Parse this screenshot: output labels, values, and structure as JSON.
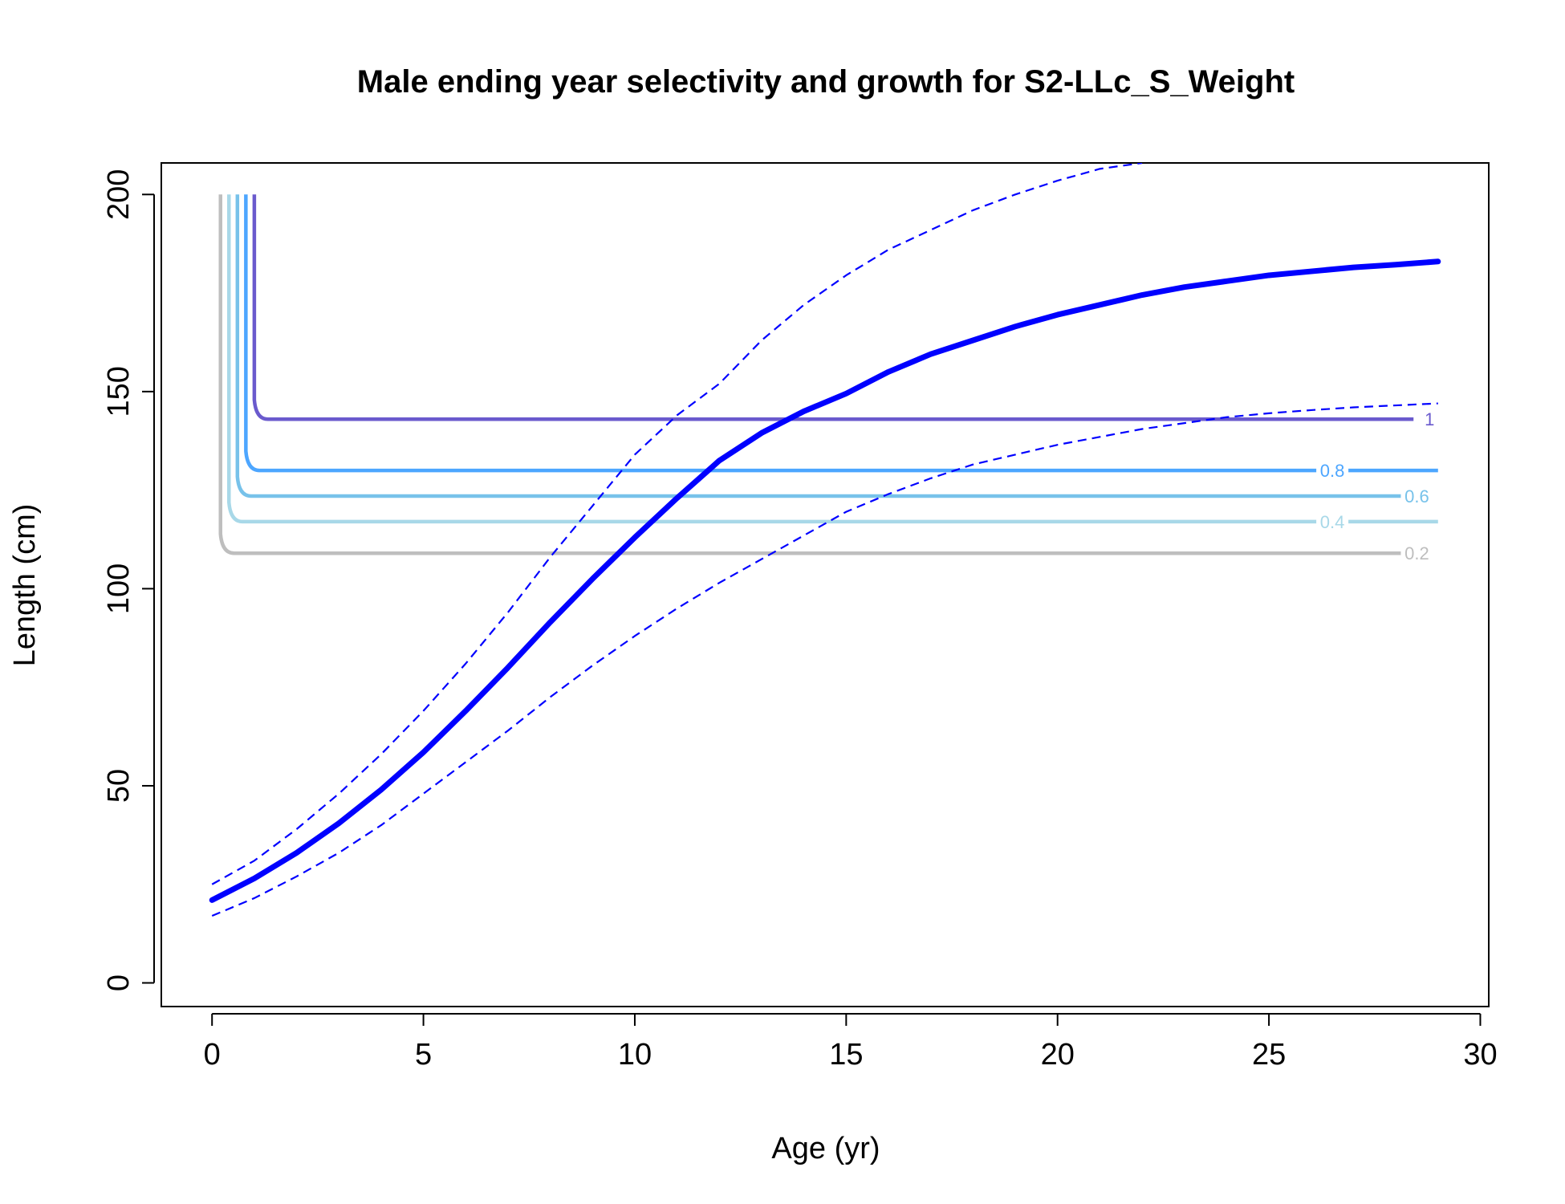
{
  "chart_data": {
    "type": "line",
    "title": "Male ending year selectivity and growth for S2-LLc_S_Weight",
    "xlabel": "Age (yr)",
    "ylabel": "Length (cm)",
    "xlim": [
      -1.2,
      30.2
    ],
    "ylim": [
      -6,
      208
    ],
    "xticks": [
      0,
      5,
      10,
      15,
      20,
      25,
      30
    ],
    "yticks": [
      0,
      50,
      100,
      150,
      200
    ],
    "grid": false,
    "legend": "none",
    "series": [
      {
        "role": "growth-mean",
        "style": "solid-thick",
        "color": "#0000ff",
        "x": [
          0,
          1,
          2,
          3,
          4,
          5,
          6,
          7,
          8,
          9,
          10,
          11,
          12,
          13,
          14,
          15,
          16,
          17,
          18,
          19,
          20,
          21,
          22,
          23,
          24,
          25,
          26,
          27,
          28,
          29
        ],
        "y": [
          21,
          26.5,
          33,
          40.5,
          49,
          58.5,
          69,
          80,
          91.5,
          102.5,
          113,
          123,
          132.5,
          139.5,
          145,
          149.5,
          155,
          159.5,
          163,
          166.5,
          169.5,
          172,
          174.5,
          176.5,
          178,
          179.5,
          180.5,
          181.5,
          182.2,
          183
        ]
      },
      {
        "role": "growth-upper",
        "style": "dashed",
        "color": "#0000ff",
        "x": [
          0,
          1,
          2,
          3,
          4,
          5,
          6,
          7,
          8,
          9,
          10,
          11,
          12,
          13,
          14,
          15,
          16,
          17,
          18,
          19,
          20,
          21,
          22
        ],
        "y": [
          25,
          31,
          39,
          48,
          58,
          69,
          81,
          94,
          108,
          121,
          134,
          144,
          152,
          163,
          172,
          179.5,
          186,
          191,
          196,
          200,
          203.5,
          206.5,
          208
        ]
      },
      {
        "role": "growth-lower",
        "style": "dashed",
        "color": "#0000ff",
        "x": [
          0,
          1,
          2,
          3,
          4,
          5,
          6,
          7,
          8,
          9,
          10,
          11,
          12,
          13,
          14,
          15,
          16,
          17,
          18,
          19,
          20,
          21,
          22,
          23,
          24,
          25,
          26,
          27,
          28,
          29
        ],
        "y": [
          17,
          21.5,
          27,
          33,
          40,
          48,
          56,
          64,
          72.5,
          80.5,
          88,
          95,
          101.5,
          107.5,
          113.5,
          119.5,
          124,
          128,
          131.5,
          134,
          136.5,
          138.5,
          140.5,
          142,
          143.5,
          144.5,
          145.3,
          146,
          146.5,
          147
        ]
      }
    ],
    "contours": [
      {
        "level": "1",
        "color": "#6a5acd",
        "x_start": 1.0,
        "y_level": 143,
        "x_end": 28.5,
        "y_top": 200,
        "label_at": 28.8,
        "labeled": true
      },
      {
        "level": "0.8",
        "color": "#4da6ff",
        "x_start": 0.8,
        "y_level": 130,
        "x_end": 29.0,
        "y_top": 200,
        "label_at": 26.5,
        "labeled": true
      },
      {
        "level": "0.6",
        "color": "#77c2ea",
        "x_start": 0.6,
        "y_level": 123.5,
        "x_end": 28.3,
        "y_top": 200,
        "label_at": 28.5,
        "labeled": true
      },
      {
        "level": "0.4",
        "color": "#a8d8e8",
        "x_start": 0.4,
        "y_level": 117,
        "x_end": 29.0,
        "y_top": 200,
        "label_at": 26.5,
        "labeled": true
      },
      {
        "level": "0.2",
        "color": "#bebebe",
        "x_start": 0.2,
        "y_level": 109,
        "x_end": 28.3,
        "y_top": 200,
        "label_at": 28.5,
        "labeled": true
      }
    ]
  }
}
